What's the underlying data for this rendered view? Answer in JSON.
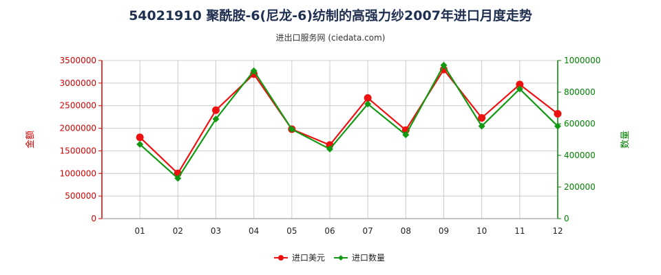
{
  "header": {
    "title": "54021910 聚酰胺-6(尼龙-6)纺制的高强力纱2007年进口月度走势",
    "subtitle": "进出口服务网 (ciedata.com)"
  },
  "colors": {
    "amount": "#ee1111",
    "quantity": "#119911",
    "grid": "#cccccc"
  },
  "chart_data": {
    "type": "line",
    "categories": [
      "01",
      "02",
      "03",
      "04",
      "05",
      "06",
      "07",
      "08",
      "09",
      "10",
      "11",
      "12"
    ],
    "y_left": {
      "label": "金额",
      "ylim": [
        0,
        3500000
      ],
      "ticks": [
        "0",
        "500000",
        "1000000",
        "1500000",
        "2000000",
        "2500000",
        "3000000",
        "3500000"
      ]
    },
    "y_right": {
      "label": "数量",
      "ylim": [
        0,
        1000000
      ],
      "ticks": [
        "0",
        "200000",
        "400000",
        "600000",
        "800000",
        "1000000"
      ]
    },
    "series": [
      {
        "name": "进口美元",
        "axis": "left",
        "values": [
          1800000,
          1000000,
          2400000,
          3200000,
          1980000,
          1630000,
          2670000,
          1960000,
          3300000,
          2230000,
          2970000,
          2320000
        ]
      },
      {
        "name": "进口数量",
        "axis": "right",
        "values": [
          470000,
          255000,
          630000,
          935000,
          565000,
          440000,
          725000,
          530000,
          970000,
          585000,
          820000,
          585000
        ]
      }
    ],
    "grid": true,
    "legend": "bottom-center"
  }
}
